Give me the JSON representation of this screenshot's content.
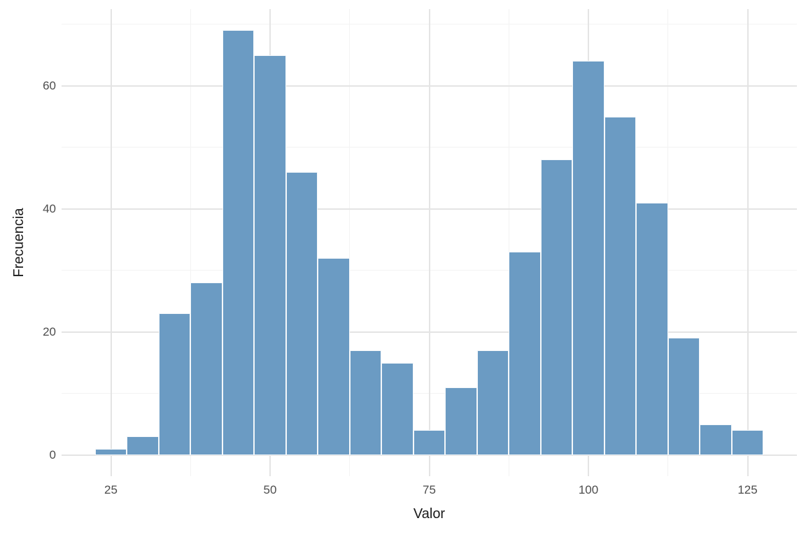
{
  "chart_data": {
    "type": "bar",
    "subtype": "histogram",
    "title": "",
    "xlabel": "Valor",
    "ylabel": "Frecuencia",
    "bin_width": 5,
    "bin_centers": [
      25,
      30,
      35,
      40,
      45,
      50,
      55,
      60,
      65,
      70,
      75,
      80,
      85,
      90,
      95,
      100,
      105,
      110,
      115,
      120,
      125
    ],
    "values": [
      1,
      3,
      23,
      28,
      69,
      65,
      46,
      32,
      17,
      15,
      4,
      11,
      17,
      33,
      48,
      64,
      55,
      41,
      19,
      5,
      4
    ],
    "x_ticks": [
      25,
      50,
      75,
      100,
      125
    ],
    "y_ticks": [
      0,
      20,
      40,
      60
    ],
    "xlim": [
      17.25,
      132.75
    ],
    "ylim": [
      -3.45,
      72.45
    ],
    "grid": "major+minor",
    "legend": "none",
    "colors": {
      "bar_fill": "#6b9bc3",
      "bar_border": "#f4f8fb",
      "grid_major": "#e4e4e4",
      "grid_minor": "#f3f3f3",
      "tick_label": "#4d4d4d",
      "axis_title": "#1a1a1a",
      "background": "#ffffff"
    }
  }
}
